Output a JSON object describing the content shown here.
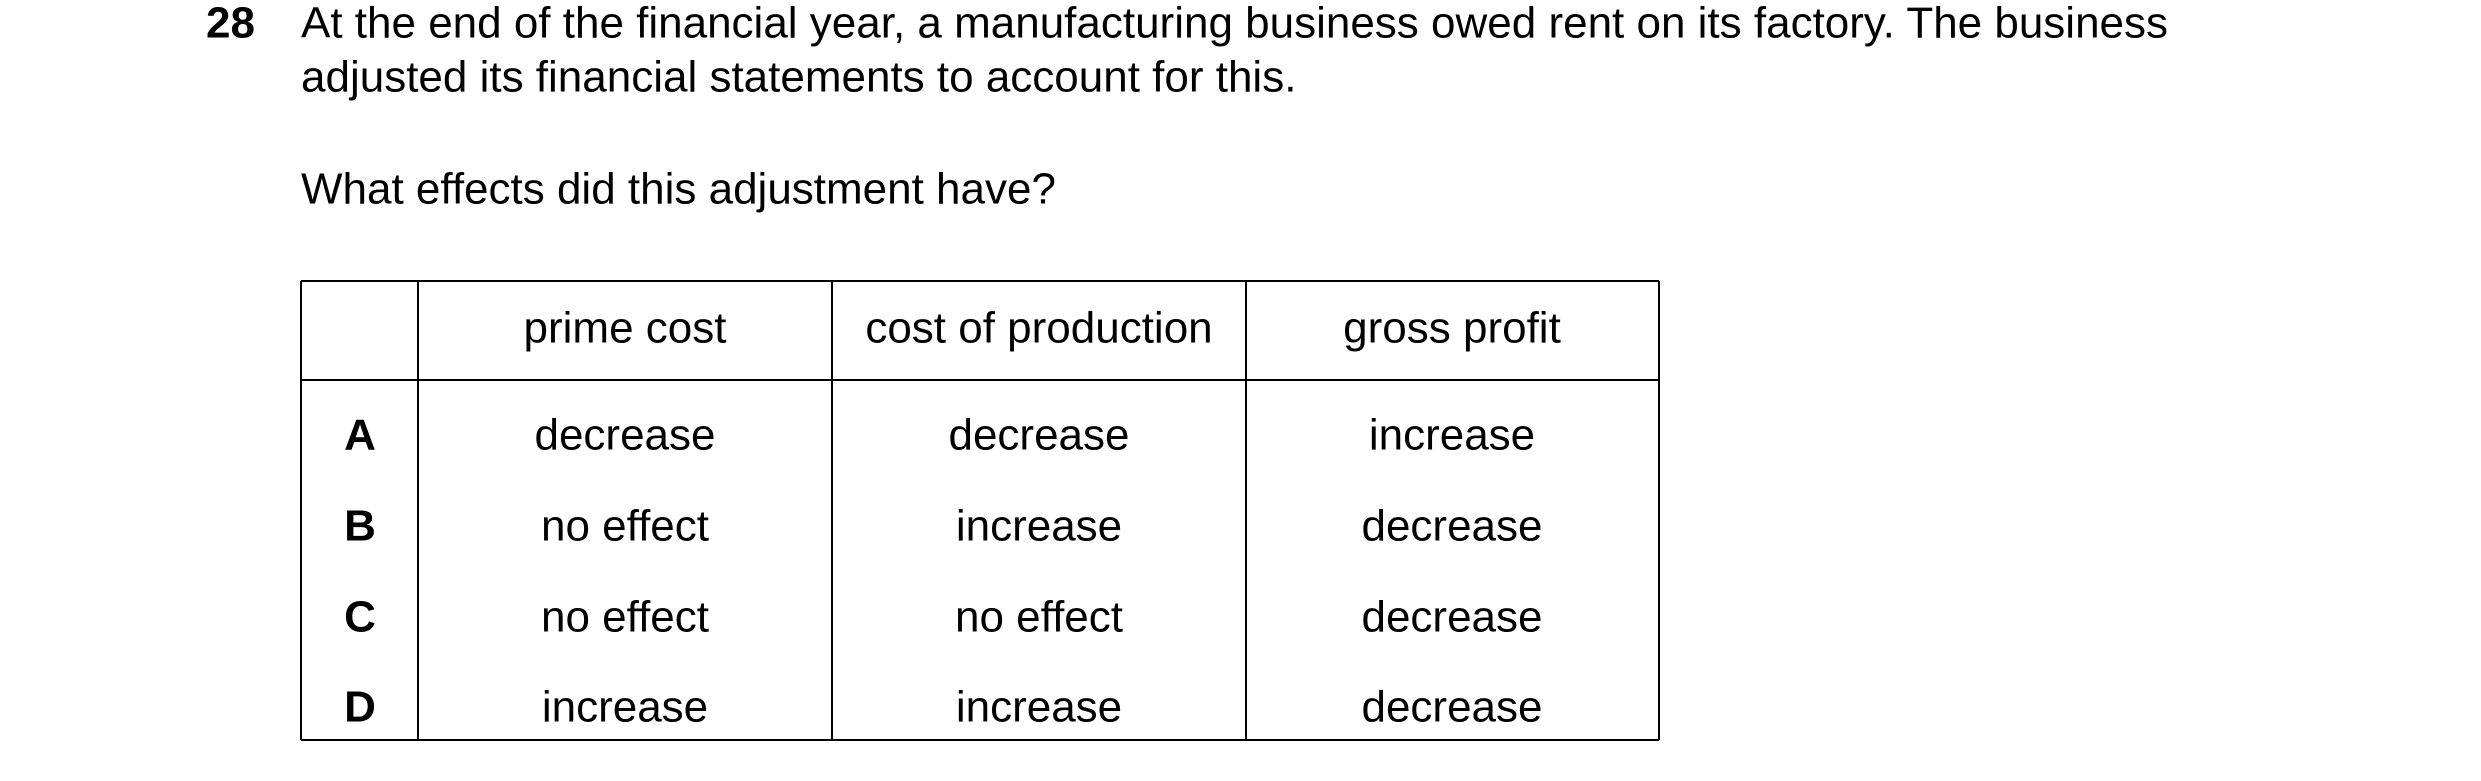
{
  "question": {
    "number": "28",
    "text_lines": [
      "At the end of the financial year, a manufacturing business owed rent on its factory. The business",
      "adjusted its financial statements to account for this."
    ],
    "prompt": "What effects did this adjustment have?"
  },
  "table": {
    "columns": [
      "prime cost",
      "cost of production",
      "gross profit"
    ],
    "rows": [
      {
        "label": "A",
        "cells": [
          "decrease",
          "decrease",
          "increase"
        ]
      },
      {
        "label": "B",
        "cells": [
          "no effect",
          "increase",
          "decrease"
        ]
      },
      {
        "label": "C",
        "cells": [
          "no effect",
          "no effect",
          "decrease"
        ]
      },
      {
        "label": "D",
        "cells": [
          "increase",
          "increase",
          "decrease"
        ]
      }
    ]
  }
}
